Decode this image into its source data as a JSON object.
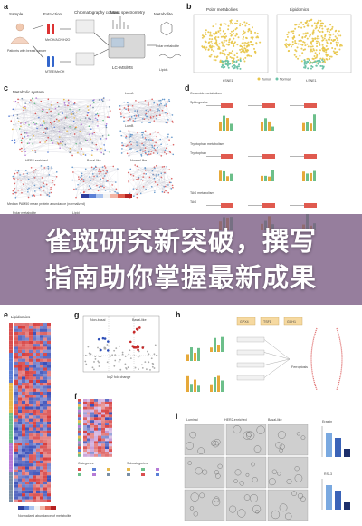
{
  "banner": {
    "line1": "雀斑研究新突破，撰写",
    "line2": "指南助你掌握最新成果"
  },
  "panels": {
    "a": "a",
    "b": "b",
    "c": "c",
    "d": "d",
    "e": "e",
    "f": "f",
    "g": "g",
    "h": "h",
    "i": "i"
  },
  "panel_a": {
    "sample": "Sample",
    "patients": "Patients with breast cancer",
    "extraction": "Extraction",
    "chromatography": "Chromatography column",
    "mass_spec": "Mass spectrometry",
    "metabolite": "Metabolite",
    "lcms": "LC–MS/MS",
    "polar": "Polar metabolite",
    "lipids": "Lipids"
  },
  "panel_b": {
    "title_left": "Polar metabolites",
    "title_right": "Lipidomics",
    "xlabel": "t-SNE1",
    "ylabel": "t-SNE2",
    "legend_tumor": "Tumor",
    "legend_normal": "Normal"
  },
  "panel_c": {
    "title": "Metabolic system",
    "lum_a": "LumA",
    "lum_b": "LumB",
    "her2": "HER2-enriched",
    "basal": "Basal-like",
    "normal": "Normal-like",
    "colorbar": "Median PAM50 mean protein abundance (normalized)",
    "polar": "Polar metabolite",
    "lipid": "Lipid"
  },
  "panel_d": {
    "title1": "Ceramide metabolism",
    "title2": "Tryptophan metabolism",
    "title3": "TAG metabolism",
    "sub1": "Sphingosine",
    "sub2": "Tryptophan",
    "sub3": "TAG"
  },
  "panel_e": {
    "title": "Lipidomics",
    "colorbar": "Normalized abundance of metabolite"
  },
  "panel_f": {
    "categories_title": "Categories",
    "subcategories_title": "Subcategories"
  },
  "panel_g": {
    "left_label": "Non-basal",
    "right_label": "Basal-like",
    "xlabel": "log2 fold change",
    "ylabel": "-log10 P value"
  },
  "panel_h": {
    "ferroptosis": "Ferroptosis",
    "nodes": [
      "GPX4",
      "TSF1",
      "GCH1"
    ]
  },
  "panel_i": {
    "col1": "Luminal",
    "col2": "HER2-enriched",
    "col3": "Basal-like",
    "bar1_title": "Erastin",
    "bar2_title": "RSL3"
  },
  "colors": {
    "tumor": "#e8c547",
    "normal": "#6cc3a8",
    "heat_red": "#d63a3a",
    "heat_blue": "#3a4fb8",
    "banner": "#785a82"
  }
}
